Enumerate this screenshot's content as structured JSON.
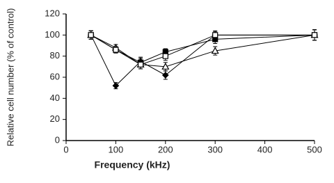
{
  "chart_data": {
    "type": "line",
    "x_label": "Frequency (kHz)",
    "y_label": "Relative cell number (% of control)",
    "x": [
      50,
      100,
      150,
      200,
      300,
      500
    ],
    "xlim": [
      0,
      500
    ],
    "xticks": [
      0,
      100,
      200,
      300,
      400,
      500
    ],
    "ylim": [
      0,
      120
    ],
    "yticks": [
      0,
      20,
      40,
      60,
      80,
      100,
      120
    ],
    "series": [
      {
        "color": "#000000",
        "marker": "diamond",
        "filled": true,
        "values": [
          100,
          52,
          75,
          62,
          100,
          100
        ],
        "errors": [
          4,
          3,
          4,
          4,
          3,
          5
        ]
      },
      {
        "color": "#000000",
        "marker": "square",
        "filled": true,
        "values": [
          100,
          86,
          74,
          84,
          96,
          100
        ],
        "errors": [
          4,
          3,
          4,
          3,
          4,
          5
        ]
      },
      {
        "color": "#000000",
        "marker": "triangle",
        "filled": false,
        "values": [
          100,
          88,
          72,
          70,
          85,
          100
        ],
        "errors": [
          4,
          3,
          4,
          4,
          4,
          5
        ]
      },
      {
        "color": "#000000",
        "marker": "square",
        "filled": false,
        "values": [
          100,
          86,
          72,
          80,
          100,
          100
        ],
        "errors": [
          4,
          3,
          4,
          4,
          4,
          5
        ]
      }
    ]
  }
}
